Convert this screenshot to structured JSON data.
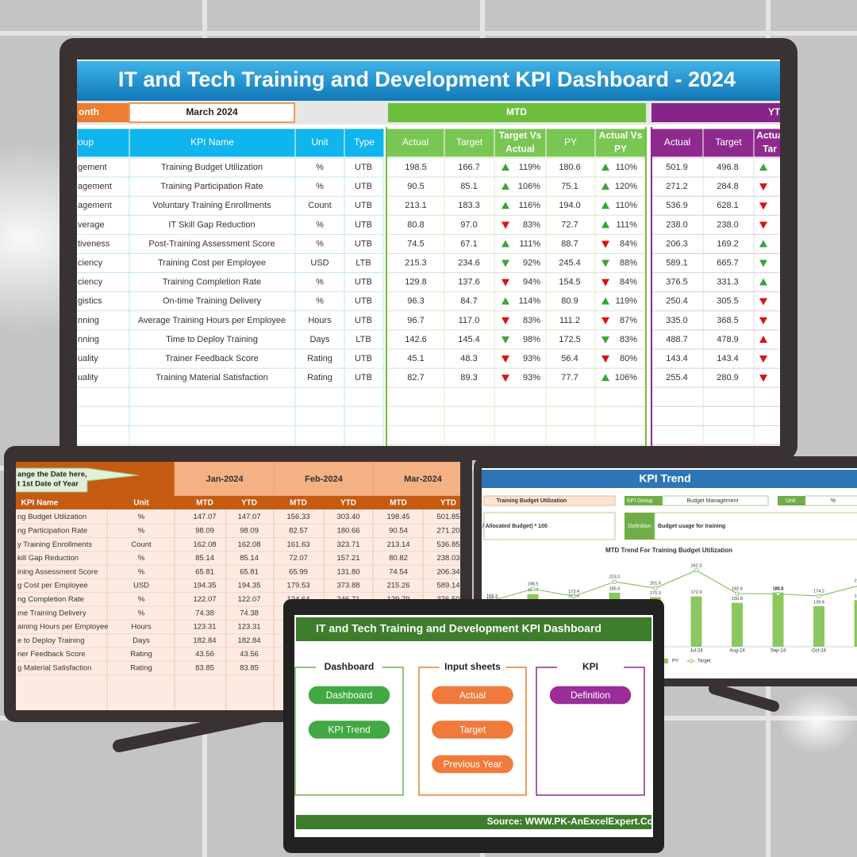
{
  "main": {
    "title": "IT and Tech Training and Development KPI Dashboard - 2024",
    "month_label": "onth",
    "month": "March 2024",
    "mtd": "MTD",
    "ytd": "YT",
    "headers": [
      [
        "oup"
      ],
      [
        "KPI Name"
      ],
      [
        "Unit"
      ],
      [
        "Type"
      ]
    ],
    "mtd_headers": [
      [
        "Actual"
      ],
      [
        "Target"
      ],
      [
        "Target Vs",
        "Actual"
      ],
      [
        "PY"
      ],
      [
        "Actual Vs",
        "PY"
      ]
    ],
    "ytd_headers": [
      [
        "Actual"
      ],
      [
        "Target"
      ],
      [
        "Actua",
        "Tar"
      ]
    ],
    "rows": [
      {
        "group": "gement",
        "kpi": "Training Budget Utilization",
        "unit": "%",
        "type": "UTB",
        "mtd": [
          "198.5",
          "166.7",
          "119%",
          "180.6",
          "110%"
        ],
        "ytd": [
          "501.9",
          "496.8"
        ]
      },
      {
        "group": "agement",
        "kpi": "Training Participation Rate",
        "unit": "%",
        "type": "UTB",
        "mtd": [
          "90.5",
          "85.1",
          "106%",
          "75.1",
          "120%"
        ],
        "ytd": [
          "271.2",
          "284.8"
        ]
      },
      {
        "group": "agement",
        "kpi": "Voluntary Training Enrollments",
        "unit": "Count",
        "type": "UTB",
        "mtd": [
          "213.1",
          "183.3",
          "116%",
          "194.0",
          "110%"
        ],
        "ytd": [
          "536.9",
          "628.1"
        ]
      },
      {
        "group": "verage",
        "kpi": "IT Skill Gap Reduction",
        "unit": "%",
        "type": "UTB",
        "mtd": [
          "80.8",
          "97.0",
          "83%",
          "72.7",
          "111%"
        ],
        "ytd": [
          "238.0",
          "238.0"
        ]
      },
      {
        "group": "tiveness",
        "kpi": "Post-Training Assessment Score",
        "unit": "%",
        "type": "UTB",
        "mtd": [
          "74.5",
          "67.1",
          "111%",
          "88.7",
          "84%"
        ],
        "ytd": [
          "206.3",
          "169.2"
        ]
      },
      {
        "group": "ciency",
        "kpi": "Training Cost per Employee",
        "unit": "USD",
        "type": "LTB",
        "mtd": [
          "215.3",
          "234.6",
          "92%",
          "245.4",
          "88%"
        ],
        "ytd": [
          "589.1",
          "665.7"
        ]
      },
      {
        "group": "ciency",
        "kpi": "Training Completion Rate",
        "unit": "%",
        "type": "UTB",
        "mtd": [
          "129.8",
          "137.6",
          "94%",
          "154.5",
          "84%"
        ],
        "ytd": [
          "376.5",
          "331.3"
        ]
      },
      {
        "group": "gistics",
        "kpi": "On-time Training Delivery",
        "unit": "%",
        "type": "UTB",
        "mtd": [
          "96.3",
          "84.7",
          "114%",
          "80.9",
          "119%"
        ],
        "ytd": [
          "250.4",
          "305.5"
        ]
      },
      {
        "group": "nning",
        "kpi": "Average Training Hours per Employee",
        "unit": "Hours",
        "type": "UTB",
        "mtd": [
          "96.7",
          "117.0",
          "83%",
          "111.2",
          "87%"
        ],
        "ytd": [
          "335.0",
          "368.5"
        ]
      },
      {
        "group": "nning",
        "kpi": "Time to Deploy Training",
        "unit": "Days",
        "type": "LTB",
        "mtd": [
          "142.6",
          "145.4",
          "98%",
          "172.5",
          "83%"
        ],
        "ytd": [
          "488.7",
          "478.9"
        ]
      },
      {
        "group": "uality",
        "kpi": "Trainer Feedback Score",
        "unit": "Rating",
        "type": "UTB",
        "mtd": [
          "45.1",
          "48.3",
          "93%",
          "56.4",
          "80%"
        ],
        "ytd": [
          "143.4",
          "143.4"
        ]
      },
      {
        "group": "uality",
        "kpi": "Training Material Satisfaction",
        "unit": "Rating",
        "type": "UTB",
        "mtd": [
          "82.7",
          "89.3",
          "93%",
          "77.7",
          "106%"
        ],
        "ytd": [
          "255.4",
          "280.9"
        ]
      }
    ]
  },
  "input": {
    "note": [
      "ange the Date here,",
      "t 1st Date of Year"
    ],
    "months": [
      "Jan-2024",
      "Feb-2024",
      "Mar-2024"
    ],
    "headers": [
      "KPI Name",
      "Unit",
      "MTD",
      "YTD",
      "MTD",
      "YTD",
      "MTD",
      "YTD"
    ],
    "rows": [
      {
        "name": "ng Budget Utilization",
        "unit": "%",
        "values": [
          "147.07",
          "147.07",
          "156.33",
          "303.40",
          "198.45",
          "501.85"
        ]
      },
      {
        "name": "ng Participation Rate",
        "unit": "%",
        "values": [
          "98.09",
          "98.09",
          "82.57",
          "180.66",
          "90.54",
          "271.20"
        ]
      },
      {
        "name": "y Training Enrollments",
        "unit": "Count",
        "values": [
          "162.08",
          "162.08",
          "161.63",
          "323.71",
          "213.14",
          "536.85"
        ]
      },
      {
        "name": "kill Gap Reduction",
        "unit": "%",
        "values": [
          "85.14",
          "85.14",
          "72.07",
          "157.21",
          "80.82",
          "238.03"
        ]
      },
      {
        "name": "ining Assessment Score",
        "unit": "%",
        "values": [
          "65.81",
          "65.81",
          "65.99",
          "131.80",
          "74.54",
          "206.34"
        ]
      },
      {
        "name": "g Cost per Employee",
        "unit": "USD",
        "values": [
          "194.35",
          "194.35",
          "179.53",
          "373.88",
          "215.26",
          "589.14"
        ]
      },
      {
        "name": "ng Completion Rate",
        "unit": "%",
        "values": [
          "122.07",
          "122.07",
          "124.64",
          "246.71",
          "129.79",
          "376.50"
        ]
      },
      {
        "name": "me Training Delivery",
        "unit": "%",
        "values": [
          "74.38",
          "74.38"
        ]
      },
      {
        "name": "aining Hours per Employee",
        "unit": "Hours",
        "values": [
          "123.31",
          "123.31"
        ]
      },
      {
        "name": "e to Deploy Training",
        "unit": "Days",
        "values": [
          "182.84",
          "182.84"
        ]
      },
      {
        "name": "ner Feedback Score",
        "unit": "Rating",
        "values": [
          "43.56",
          "43.56"
        ]
      },
      {
        "name": "g Material Satisfaction",
        "unit": "Rating",
        "values": [
          "83.85",
          "83.85"
        ]
      }
    ]
  },
  "trend": {
    "title": "KPI Trend",
    "kpi": "Training Budget Utilization",
    "group_label": "KPI Group",
    "group": "Budget Management",
    "unit_label": "Unit",
    "unit": "%",
    "formula": "/ Allocated Budget) * 100",
    "definition_label": "Definition",
    "definition": "Budget usage for training",
    "chart_data": {
      "type": "bar",
      "title": "MTD Trend For Training Budget Utilization",
      "categories": [
        null,
        null,
        null,
        null,
        null,
        "Jul-24",
        "Aug-24",
        "Sep-24",
        "Oct-24",
        null
      ],
      "ylim": [
        0,
        300
      ],
      "series": [
        {
          "name": "PY",
          "color": "#8cc85f",
          "values": [
            150.2,
            180.7,
            160.4,
            185.6,
            170.3,
            172.9,
            150.8,
            186.5,
            139.4,
            160.1
          ]
        },
        {
          "name": "Target",
          "type": "line",
          "color": "#8fbf6f",
          "values": [
            158.3,
            198.5,
            173.4,
            223.2,
            201.6,
            262.3,
            182.6,
            181.6,
            174.2,
            210.5
          ]
        }
      ]
    }
  },
  "launcher": {
    "title": "IT and Tech Training and Development KPI Dashboard",
    "sections": [
      {
        "title": "Dashboard",
        "buttons": [
          "Dashboard",
          "KPI Trend"
        ]
      },
      {
        "title": "Input sheets",
        "buttons": [
          "Actual",
          "Target",
          "Previous Year"
        ]
      },
      {
        "title": "KPI",
        "buttons": [
          "Definition"
        ]
      }
    ],
    "footer": "Source: WWW.PK-AnExcelExpert.Co"
  }
}
